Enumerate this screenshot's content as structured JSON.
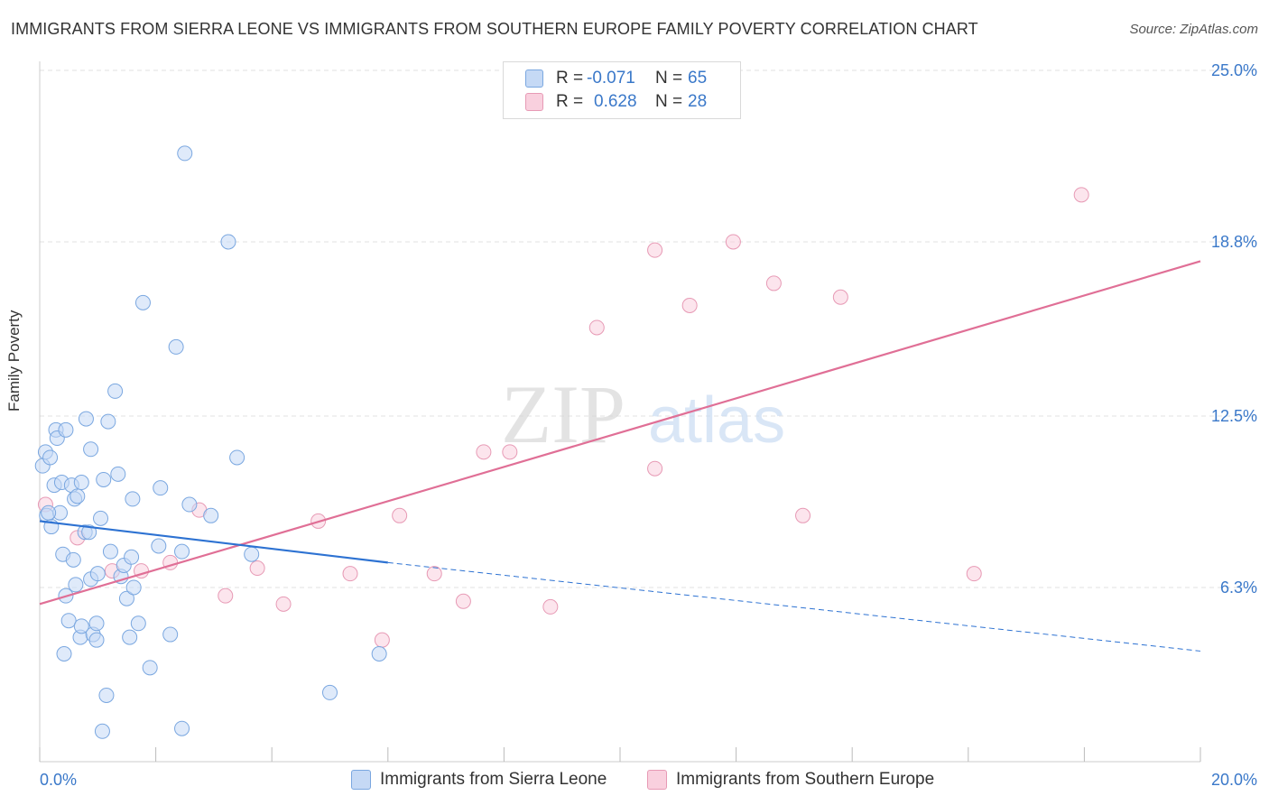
{
  "header": {
    "title": "IMMIGRANTS FROM SIERRA LEONE VS IMMIGRANTS FROM SOUTHERN EUROPE FAMILY POVERTY CORRELATION CHART",
    "source": "Source: ZipAtlas.com"
  },
  "watermark": {
    "zip": "ZIP",
    "atlas": "atlas"
  },
  "legend": {
    "r_label": "R =",
    "n_label": "N =",
    "series": [
      {
        "r": "-0.071",
        "n": "65"
      },
      {
        "r": "0.628",
        "n": "28"
      }
    ]
  },
  "bottom_legend": {
    "blue": "Immigrants from Sierra Leone",
    "pink": "Immigrants from Southern Europe"
  },
  "colors": {
    "blue_fill": "#c5d9f5",
    "blue_stroke": "#7aa7e0",
    "blue_line": "#2d72d2",
    "pink_fill": "#f9d0de",
    "pink_stroke": "#e79ab5",
    "pink_line": "#e06f96",
    "tick_text": "#3a78c9",
    "grid": "#e2e2e2"
  },
  "chart_data": {
    "type": "scatter",
    "title": "IMMIGRANTS FROM SIERRA LEONE VS IMMIGRANTS FROM SOUTHERN EUROPE FAMILY POVERTY CORRELATION CHART",
    "xlabel": "",
    "ylabel": "Family Poverty",
    "xlim": [
      0,
      20
    ],
    "ylim": [
      0,
      25.0
    ],
    "x_tick_labels": [
      {
        "value": 0,
        "label": "0.0%"
      },
      {
        "value": 20,
        "label": "20.0%"
      }
    ],
    "x_minor_ticks": [
      0,
      2,
      4,
      6,
      8,
      10,
      12,
      14,
      16,
      18,
      20
    ],
    "y_ticks": [
      {
        "value": 6.3,
        "label": "6.3%"
      },
      {
        "value": 12.5,
        "label": "12.5%"
      },
      {
        "value": 18.8,
        "label": "18.8%"
      },
      {
        "value": 25.0,
        "label": "25.0%"
      }
    ],
    "series": [
      {
        "name": "Immigrants from Sierra Leone",
        "color": "blue",
        "r": -0.071,
        "n": 65,
        "points": [
          [
            0.05,
            10.7
          ],
          [
            0.1,
            11.2
          ],
          [
            0.12,
            8.9
          ],
          [
            0.18,
            11.0
          ],
          [
            0.2,
            8.5
          ],
          [
            0.25,
            10.0
          ],
          [
            0.28,
            12.0
          ],
          [
            0.3,
            11.7
          ],
          [
            0.35,
            9.0
          ],
          [
            0.38,
            10.1
          ],
          [
            0.4,
            7.5
          ],
          [
            0.42,
            3.9
          ],
          [
            0.45,
            12.0
          ],
          [
            0.45,
            6.0
          ],
          [
            0.5,
            5.1
          ],
          [
            0.55,
            10.0
          ],
          [
            0.58,
            7.3
          ],
          [
            0.6,
            9.5
          ],
          [
            0.62,
            6.4
          ],
          [
            0.65,
            9.6
          ],
          [
            0.7,
            4.5
          ],
          [
            0.72,
            10.1
          ],
          [
            0.72,
            4.9
          ],
          [
            0.78,
            8.3
          ],
          [
            0.8,
            12.4
          ],
          [
            0.85,
            8.3
          ],
          [
            0.88,
            11.3
          ],
          [
            0.88,
            6.6
          ],
          [
            0.92,
            4.6
          ],
          [
            0.98,
            5.0
          ],
          [
            0.98,
            4.4
          ],
          [
            1.0,
            6.8
          ],
          [
            1.05,
            8.8
          ],
          [
            1.08,
            1.1
          ],
          [
            1.1,
            10.2
          ],
          [
            1.15,
            2.4
          ],
          [
            1.18,
            12.3
          ],
          [
            1.22,
            7.6
          ],
          [
            1.3,
            13.4
          ],
          [
            1.35,
            10.4
          ],
          [
            1.4,
            6.7
          ],
          [
            1.45,
            7.1
          ],
          [
            1.5,
            5.9
          ],
          [
            1.55,
            4.5
          ],
          [
            1.58,
            7.4
          ],
          [
            1.6,
            9.5
          ],
          [
            1.62,
            6.3
          ],
          [
            1.7,
            5.0
          ],
          [
            1.78,
            16.6
          ],
          [
            1.9,
            3.4
          ],
          [
            2.05,
            7.8
          ],
          [
            2.08,
            9.9
          ],
          [
            2.25,
            4.6
          ],
          [
            2.35,
            15.0
          ],
          [
            2.45,
            7.6
          ],
          [
            2.45,
            1.2
          ],
          [
            2.5,
            22.0
          ],
          [
            2.58,
            9.3
          ],
          [
            2.95,
            8.9
          ],
          [
            3.25,
            18.8
          ],
          [
            3.4,
            11.0
          ],
          [
            3.65,
            7.5
          ],
          [
            5.0,
            2.5
          ],
          [
            5.85,
            3.9
          ],
          [
            0.15,
            9.0
          ]
        ],
        "trend": {
          "x0": 0,
          "y0": 8.7,
          "x1": 6.0,
          "y1": 7.2,
          "dash_x1": 20,
          "dash_y1": 4.0
        }
      },
      {
        "name": "Immigrants from Southern Europe",
        "color": "pink",
        "r": 0.628,
        "n": 28,
        "points": [
          [
            0.1,
            9.3
          ],
          [
            0.65,
            8.1
          ],
          [
            1.25,
            6.9
          ],
          [
            1.75,
            6.9
          ],
          [
            2.25,
            7.2
          ],
          [
            2.75,
            9.1
          ],
          [
            3.2,
            6.0
          ],
          [
            3.75,
            7.0
          ],
          [
            4.2,
            5.7
          ],
          [
            4.8,
            8.7
          ],
          [
            5.35,
            6.8
          ],
          [
            5.9,
            4.4
          ],
          [
            6.2,
            8.9
          ],
          [
            6.8,
            6.8
          ],
          [
            7.3,
            5.8
          ],
          [
            7.65,
            11.2
          ],
          [
            8.1,
            11.2
          ],
          [
            8.8,
            5.6
          ],
          [
            9.6,
            15.7
          ],
          [
            10.6,
            10.6
          ],
          [
            10.6,
            18.5
          ],
          [
            11.2,
            16.5
          ],
          [
            11.95,
            18.8
          ],
          [
            12.65,
            17.3
          ],
          [
            13.15,
            8.9
          ],
          [
            13.8,
            16.8
          ],
          [
            16.1,
            6.8
          ],
          [
            17.95,
            20.5
          ]
        ],
        "trend": {
          "x0": 0,
          "y0": 5.7,
          "x1": 20,
          "y1": 18.1
        }
      }
    ]
  }
}
